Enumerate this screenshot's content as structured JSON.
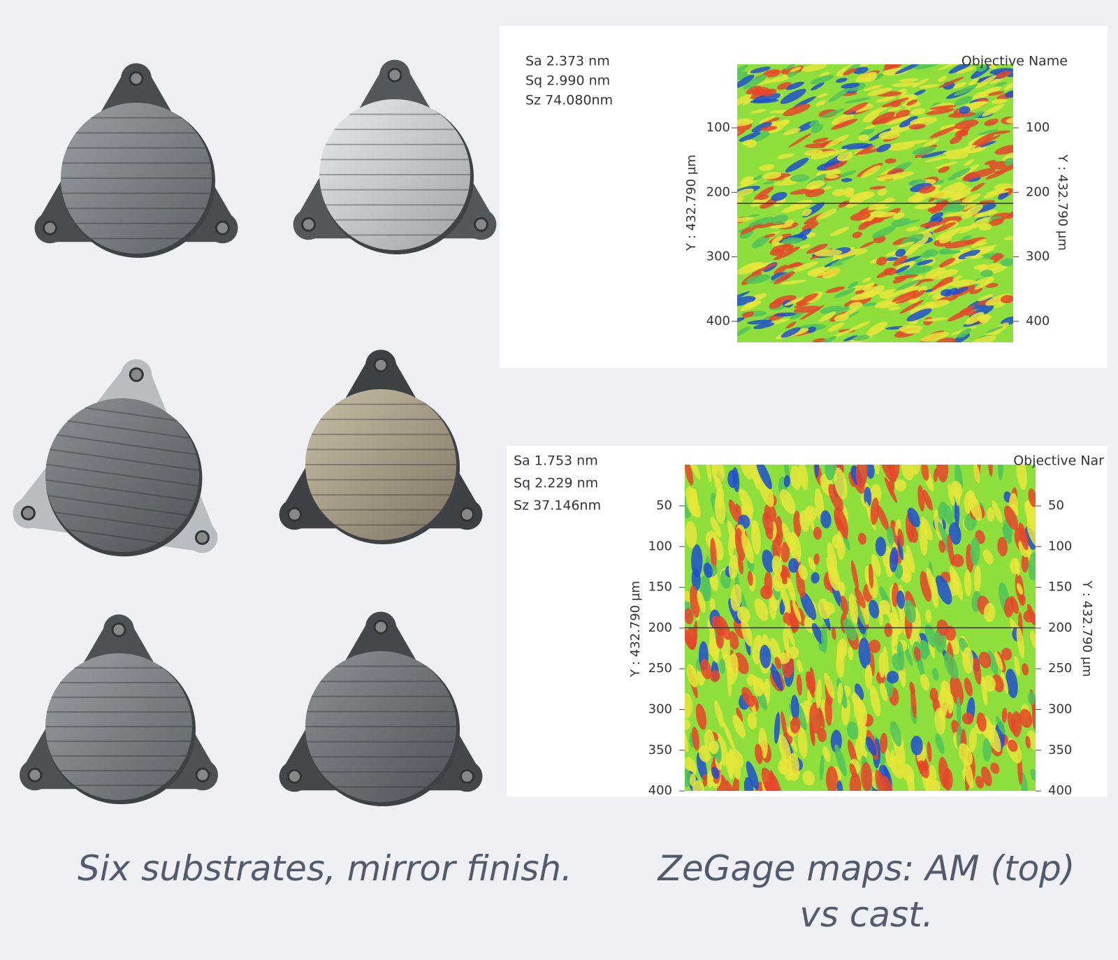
{
  "photos": {
    "caption": "Six substrates, mirror finish."
  },
  "maps": {
    "caption": "ZeGage maps: AM (top) vs cast.",
    "items": [
      {
        "stats": [
          "Sa 2.373  nm",
          "Sq 2.990  nm",
          "Sz 74.080nm"
        ],
        "objective": "Objective Name",
        "axis_label": "Y : 432.790 µm",
        "left_ticks": [
          "100",
          "200",
          "300",
          "400"
        ],
        "right_ticks": [
          "100",
          "200",
          "300",
          "400"
        ]
      },
      {
        "stats": [
          "Sa 1.753  nm",
          "Sq 2.229  nm",
          "Sz 37.146nm"
        ],
        "objective": "Objective Nar",
        "axis_label": "Y : 432.790 µm",
        "left_ticks": [
          "50",
          "100",
          "150",
          "200",
          "250",
          "300",
          "350",
          "400"
        ],
        "right_ticks": [
          "50",
          "100",
          "150",
          "200",
          "250",
          "300",
          "350",
          "400"
        ]
      }
    ]
  }
}
